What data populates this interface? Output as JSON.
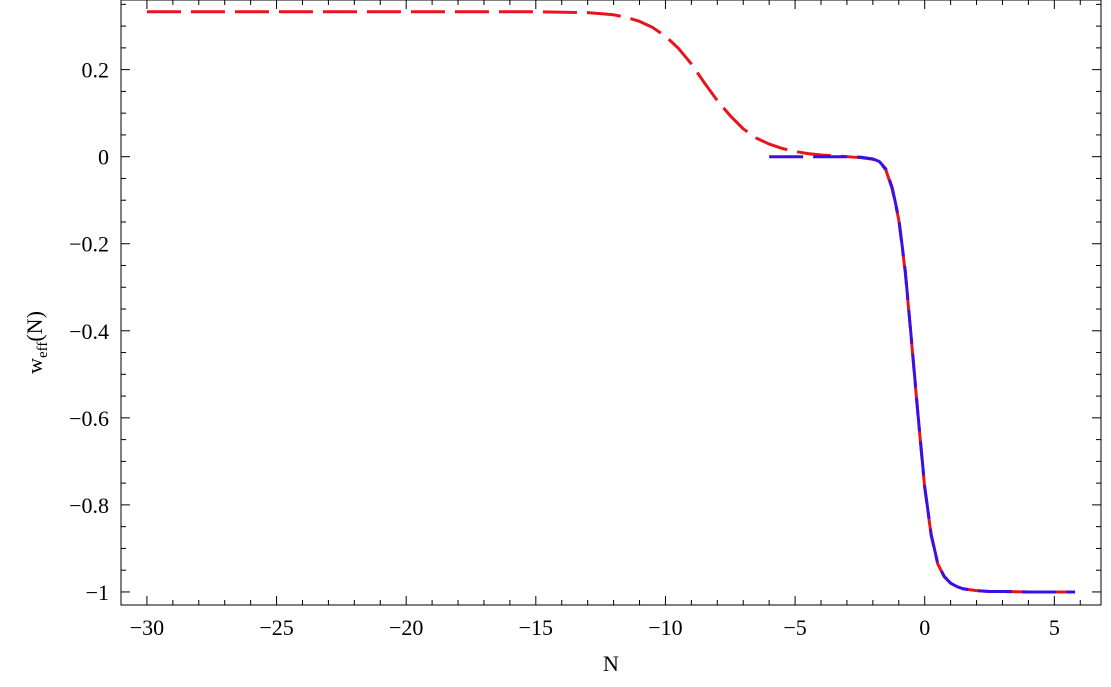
{
  "chart_data": {
    "type": "line",
    "title": "",
    "xlabel": "N",
    "ylabel": "w",
    "ylabel_subscript": "eff",
    "ylabel_suffix": "(N)",
    "xlim": [
      -31.0,
      6.8
    ],
    "ylim": [
      -1.03,
      0.36
    ],
    "x_ticks": [
      -30,
      -25,
      -20,
      -15,
      -10,
      -5,
      0,
      5
    ],
    "x_tick_labels": [
      "−30",
      "−25",
      "−20",
      "−15",
      "−10",
      "−5",
      "0",
      "5"
    ],
    "y_ticks": [
      0.2,
      0,
      -0.2,
      -0.4,
      -0.6,
      -0.8,
      -1
    ],
    "y_tick_labels": [
      "0.2",
      "0",
      "−0.2",
      "−0.4",
      "−0.6",
      "−0.8",
      "−1"
    ],
    "grid": false,
    "series": [
      {
        "color": "#e8141c",
        "dash": "long",
        "x": [
          -30,
          -25,
          -20,
          -15,
          -13,
          -12,
          -11.5,
          -11,
          -10.5,
          -10,
          -9.5,
          -9,
          -8.5,
          -8,
          -7.5,
          -7,
          -6.5,
          -6,
          -5.5,
          -5,
          -4.5,
          -4,
          -3.5,
          -3,
          -2.5,
          -2,
          -1.75,
          -1.5,
          -1.25,
          -1,
          -0.75,
          -0.5,
          -0.25,
          0,
          0.25,
          0.5,
          0.75,
          1,
          1.25,
          1.5,
          2,
          2.5,
          3,
          4,
          5,
          5.8
        ],
        "y": [
          0.333,
          0.333,
          0.333,
          0.333,
          0.331,
          0.326,
          0.32,
          0.311,
          0.297,
          0.277,
          0.249,
          0.213,
          0.17,
          0.129,
          0.094,
          0.064,
          0.043,
          0.029,
          0.019,
          0.012,
          0.007,
          0.004,
          0.002,
          0.0,
          -0.002,
          -0.006,
          -0.012,
          -0.03,
          -0.075,
          -0.145,
          -0.265,
          -0.43,
          -0.6,
          -0.76,
          -0.87,
          -0.935,
          -0.965,
          -0.98,
          -0.988,
          -0.993,
          -0.997,
          -0.999,
          -0.999,
          -1.0,
          -1.0,
          -1.0
        ]
      },
      {
        "color": "#3a10e6",
        "dash": "long",
        "x": [
          -6,
          -5,
          -4,
          -3,
          -2.5,
          -2,
          -1.75,
          -1.5,
          -1.25,
          -1,
          -0.75,
          -0.5,
          -0.25,
          0,
          0.25,
          0.5,
          0.75,
          1,
          1.25,
          1.5,
          2,
          2.5,
          3,
          4,
          5,
          5.8
        ],
        "y": [
          0.0,
          0.0,
          0.0,
          0.0,
          -0.001,
          -0.005,
          -0.011,
          -0.028,
          -0.072,
          -0.142,
          -0.262,
          -0.428,
          -0.598,
          -0.758,
          -0.868,
          -0.934,
          -0.964,
          -0.98,
          -0.988,
          -0.993,
          -0.997,
          -0.999,
          -0.999,
          -1.0,
          -1.0,
          -1.0
        ]
      }
    ]
  }
}
